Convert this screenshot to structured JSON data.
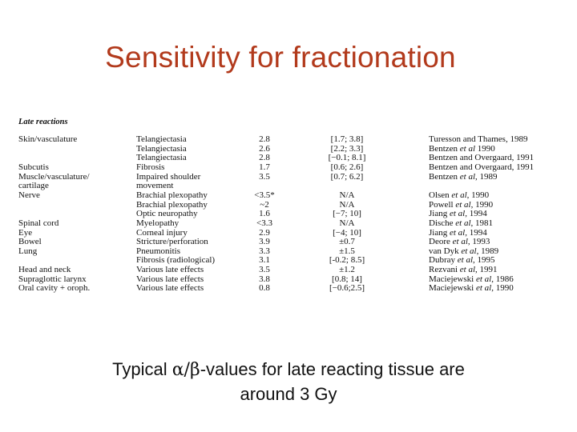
{
  "slide": {
    "title": "Sensitivity for fractionation",
    "subtitle_line1_pre": "Typical ",
    "subtitle_greek": "α/β",
    "subtitle_line1_post": "-values for late reacting tissue are",
    "subtitle_line2": "around 3 Gy",
    "title_color": "#b23a1c"
  },
  "table": {
    "section_heading": "Late reactions",
    "rows": [
      {
        "tissue": "Skin/vasculature",
        "endpoint": "Telangiectasia",
        "ab": "2.8",
        "ci": "[1.7; 3.8]",
        "ref": "Turesson and Thames, 1989"
      },
      {
        "tissue": "",
        "endpoint": "Telangiectasia",
        "ab": "2.6",
        "ci": "[2.2; 3.3]",
        "ref": "Bentzen et al 1990"
      },
      {
        "tissue": "",
        "endpoint": "Telangiectasia",
        "ab": "2.8",
        "ci": "[−0.1; 8.1]",
        "ref": "Bentzen and Overgaard, 1991"
      },
      {
        "tissue": "Subcutis",
        "endpoint": "Fibrosis",
        "ab": "1.7",
        "ci": "[0.6; 2.6]",
        "ref": "Bentzen and Overgaard, 1991"
      },
      {
        "tissue": "Muscle/vasculature/",
        "endpoint": "Impaired shoulder",
        "ab": "3.5",
        "ci": "[0.7; 6.2]",
        "ref": "Bentzen et al, 1989"
      },
      {
        "tissue": "cartilage",
        "endpoint": "movement",
        "ab": "",
        "ci": "",
        "ref": ""
      },
      {
        "tissue": "Nerve",
        "endpoint": "Brachial plexopathy",
        "ab": "<3.5*",
        "ci": "N/A",
        "ref": "Olsen et al, 1990"
      },
      {
        "tissue": "",
        "endpoint": "Brachial plexopathy",
        "ab": "~2",
        "ci": "N/A",
        "ref": "Powell et al, 1990"
      },
      {
        "tissue": "",
        "endpoint": "Optic neuropathy",
        "ab": "1.6",
        "ci": "[−7; 10]",
        "ref": "Jiang et al, 1994"
      },
      {
        "tissue": "Spinal cord",
        "endpoint": "Myelopathy",
        "ab": "<3.3",
        "ci": "N/A",
        "ref": "Dische et al, 1981"
      },
      {
        "tissue": "Eye",
        "endpoint": "Corneal injury",
        "ab": "2.9",
        "ci": "[−4; 10]",
        "ref": "Jiang et al, 1994"
      },
      {
        "tissue": "Bowel",
        "endpoint": "Stricture/perforation",
        "ab": "3.9",
        "ci": "±0.7",
        "ref": "Deore et al, 1993"
      },
      {
        "tissue": "Lung",
        "endpoint": "Pneumonitis",
        "ab": "3.3",
        "ci": "±1.5",
        "ref": "van Dyk et al, 1989"
      },
      {
        "tissue": "",
        "endpoint": "Fibrosis (radiological)",
        "ab": "3.1",
        "ci": "[-0.2; 8.5]",
        "ref": "Dubray et al, 1995"
      },
      {
        "tissue": "Head and neck",
        "endpoint": "Various late effects",
        "ab": "3.5",
        "ci": "±1.2",
        "ref": "Rezvani et al, 1991"
      },
      {
        "tissue": "Supraglottic larynx",
        "endpoint": "Various late effects",
        "ab": "3.8",
        "ci": "[0.8; 14]",
        "ref": "Maciejewski et al, 1986"
      },
      {
        "tissue": "Oral cavity + oroph.",
        "endpoint": "Various late effects",
        "ab": "0.8",
        "ci": "[−0.6;2.5]",
        "ref": "Maciejewski et al, 1990"
      }
    ]
  }
}
